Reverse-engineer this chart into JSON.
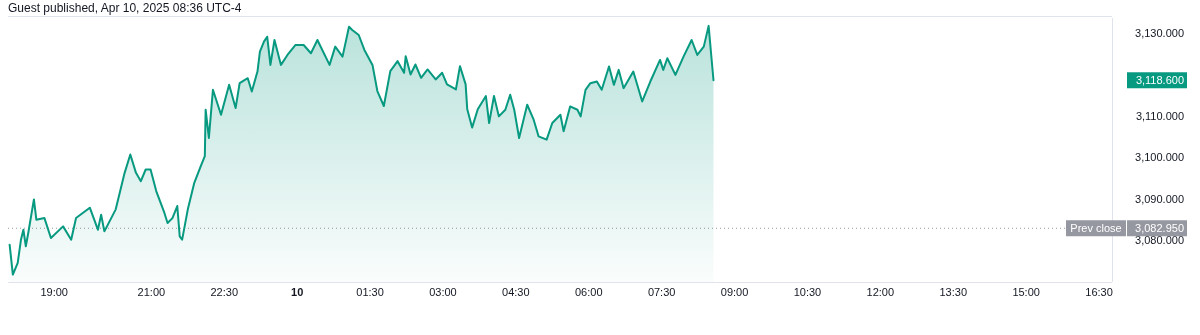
{
  "chart_data": {
    "type": "area",
    "title": "Guest published, Apr 10, 2025 08:36 UTC-4",
    "xlim": [
      "2025-04-09T18:03",
      "2025-04-10T16:46"
    ],
    "ylim": [
      3070,
      3133.6
    ],
    "xticks": [
      {
        "value": "2025-04-09T19:00",
        "label": "19:00"
      },
      {
        "value": "2025-04-09T21:00",
        "label": "21:00"
      },
      {
        "value": "2025-04-09T22:30",
        "label": "22:30"
      },
      {
        "value": "2025-04-10T00:00",
        "label": "10"
      },
      {
        "value": "2025-04-10T01:30",
        "label": "01:30"
      },
      {
        "value": "2025-04-10T03:00",
        "label": "03:00"
      },
      {
        "value": "2025-04-10T04:30",
        "label": "04:30"
      },
      {
        "value": "2025-04-10T06:00",
        "label": "06:00"
      },
      {
        "value": "2025-04-10T07:30",
        "label": "07:30"
      },
      {
        "value": "2025-04-10T09:00",
        "label": "09:00"
      },
      {
        "value": "2025-04-10T10:30",
        "label": "10:30"
      },
      {
        "value": "2025-04-10T12:00",
        "label": "12:00"
      },
      {
        "value": "2025-04-10T13:30",
        "label": "13:30"
      },
      {
        "value": "2025-04-10T15:00",
        "label": "15:00"
      },
      {
        "value": "2025-04-10T16:30",
        "label": "16:30"
      }
    ],
    "yticks": [
      {
        "value": 3080,
        "label": "3,080.000"
      },
      {
        "value": 3090,
        "label": "3,090.000"
      },
      {
        "value": 3100,
        "label": "3,100.000"
      },
      {
        "value": 3110,
        "label": "3,110.000"
      },
      {
        "value": 3130,
        "label": "3,130.000"
      }
    ],
    "x": [
      "2025-04-09T18:05",
      "2025-04-09T18:09",
      "2025-04-09T18:15",
      "2025-04-09T18:19",
      "2025-04-09T18:22",
      "2025-04-09T18:25",
      "2025-04-09T18:28",
      "2025-04-09T18:35",
      "2025-04-09T18:38",
      "2025-04-09T18:48",
      "2025-04-09T18:56",
      "2025-04-09T19:11",
      "2025-04-09T19:21",
      "2025-04-09T19:27",
      "2025-04-09T19:44",
      "2025-04-09T19:54",
      "2025-04-09T19:58",
      "2025-04-09T20:02",
      "2025-04-09T20:16",
      "2025-04-09T20:27",
      "2025-04-09T20:34",
      "2025-04-09T20:41",
      "2025-04-09T20:47",
      "2025-04-09T20:53",
      "2025-04-09T20:59",
      "2025-04-09T21:06",
      "2025-04-09T21:16",
      "2025-04-09T21:20",
      "2025-04-09T21:26",
      "2025-04-09T21:32",
      "2025-04-09T21:35",
      "2025-04-09T21:38",
      "2025-04-09T21:45",
      "2025-04-09T21:53",
      "2025-04-09T22:01",
      "2025-04-09T22:06",
      "2025-04-09T22:07",
      "2025-04-09T22:11",
      "2025-04-09T22:16",
      "2025-04-09T22:20",
      "2025-04-09T22:26",
      "2025-04-09T22:36",
      "2025-04-09T22:44",
      "2025-04-09T22:49",
      "2025-04-09T22:59",
      "2025-04-09T23:04",
      "2025-04-09T23:11",
      "2025-04-09T23:14",
      "2025-04-09T23:19",
      "2025-04-09T23:23",
      "2025-04-09T23:27",
      "2025-04-09T23:32",
      "2025-04-09T23:40",
      "2025-04-09T23:48",
      "2025-04-09T23:58",
      "2025-04-10T00:08",
      "2025-04-10T00:17",
      "2025-04-10T00:25",
      "2025-04-10T00:40",
      "2025-04-10T00:47",
      "2025-04-10T00:56",
      "2025-04-10T01:04",
      "2025-04-10T01:08",
      "2025-04-10T01:16",
      "2025-04-10T01:23",
      "2025-04-10T01:33",
      "2025-04-10T01:39",
      "2025-04-10T01:47",
      "2025-04-10T01:55",
      "2025-04-10T02:04",
      "2025-04-10T02:12",
      "2025-04-10T02:14",
      "2025-04-10T02:20",
      "2025-04-10T02:26",
      "2025-04-10T02:33",
      "2025-04-10T02:41",
      "2025-04-10T02:51",
      "2025-04-10T02:59",
      "2025-04-10T03:05",
      "2025-04-10T03:16",
      "2025-04-10T03:21",
      "2025-04-10T03:28",
      "2025-04-10T03:30",
      "2025-04-10T03:36",
      "2025-04-10T03:43",
      "2025-04-10T03:53",
      "2025-04-10T03:57",
      "2025-04-10T04:03",
      "2025-04-10T04:09",
      "2025-04-10T04:17",
      "2025-04-10T04:23",
      "2025-04-10T04:28",
      "2025-04-10T04:34",
      "2025-04-10T04:44",
      "2025-04-10T04:52",
      "2025-04-10T04:58",
      "2025-04-10T05:08",
      "2025-04-10T05:15",
      "2025-04-10T05:25",
      "2025-04-10T05:29",
      "2025-04-10T05:37",
      "2025-04-10T05:46",
      "2025-04-10T05:50",
      "2025-04-10T05:56",
      "2025-04-10T06:02",
      "2025-04-10T06:10",
      "2025-04-10T06:16",
      "2025-04-10T06:25",
      "2025-04-10T06:31",
      "2025-04-10T06:37",
      "2025-04-10T06:43",
      "2025-04-10T06:55",
      "2025-04-10T07:06",
      "2025-04-10T07:16",
      "2025-04-10T07:28",
      "2025-04-10T07:32",
      "2025-04-10T07:37",
      "2025-04-10T07:47",
      "2025-04-10T07:57",
      "2025-04-10T08:07",
      "2025-04-10T08:14",
      "2025-04-10T08:22",
      "2025-04-10T08:28",
      "2025-04-10T08:31",
      "2025-04-10T08:34"
    ],
    "series": [
      {
        "color": "#089981",
        "values": [
          3079.0,
          3071.8,
          3074.6,
          3080.2,
          3082.6,
          3078.6,
          3081.8,
          3089.9,
          3085.0,
          3085.4,
          3080.6,
          3083.4,
          3080.2,
          3085.4,
          3087.9,
          3082.6,
          3086.2,
          3082.2,
          3087.5,
          3096.3,
          3100.7,
          3096.3,
          3094.3,
          3097.1,
          3097.1,
          3091.9,
          3086.7,
          3084.2,
          3085.4,
          3088.3,
          3081.0,
          3080.2,
          3087.5,
          3093.9,
          3097.9,
          3100.3,
          3111.5,
          3104.7,
          3116.3,
          3113.9,
          3110.3,
          3117.5,
          3111.9,
          3117.9,
          3119.1,
          3115.9,
          3120.7,
          3125.5,
          3127.9,
          3129.1,
          3122.3,
          3128.3,
          3122.3,
          3124.7,
          3127.1,
          3127.1,
          3125.1,
          3128.3,
          3122.3,
          3126.7,
          3124.3,
          3131.5,
          3130.7,
          3129.5,
          3125.9,
          3122.3,
          3116.0,
          3112.4,
          3120.8,
          3123.2,
          3120.4,
          3124.4,
          3120.0,
          3122.4,
          3119.2,
          3121.2,
          3118.8,
          3120.4,
          3117.6,
          3116.4,
          3122.0,
          3117.6,
          3111.6,
          3107.2,
          3111.6,
          3114.8,
          3108.3,
          3114.8,
          3109.9,
          3111.5,
          3115.1,
          3111.5,
          3104.7,
          3112.7,
          3109.1,
          3105.1,
          3104.3,
          3108.3,
          3110.3,
          3106.3,
          3112.3,
          3111.5,
          3109.9,
          3116.3,
          3117.9,
          3118.3,
          3116.3,
          3121.9,
          3117.5,
          3121.1,
          3116.7,
          3120.7,
          3113.5,
          3118.3,
          3123.5,
          3121.1,
          3123.9,
          3119.9,
          3124.3,
          3128.3,
          3124.7,
          3126.7,
          3131.7,
          3125.1,
          3118.6
        ]
      }
    ],
    "ref_lines": [
      {
        "axis": "y",
        "value": 3082.95,
        "label": "Prev close",
        "color": "#9598a1",
        "line_style": "dotted"
      }
    ],
    "annotations": [
      "3,118.600",
      "3,082.950"
    ]
  }
}
